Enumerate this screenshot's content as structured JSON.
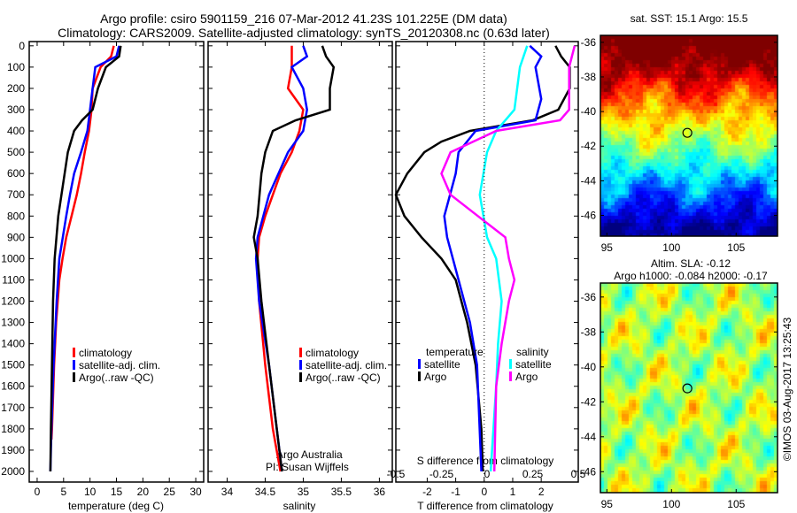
{
  "title_line1": "Argo profile: csiro 5901159_216 07-Mar-2012 41.23S 101.225E (DM data)",
  "title_line2": "Climatology: CARS2009. Satellite-adjusted climatology: synTS_20120308.nc (0.63d later)",
  "colors": {
    "climatology": "#ff0000",
    "satellite": "#0000ff",
    "argo": "#000000",
    "s_satellite": "#00ffff",
    "s_argo": "#ff00ff"
  },
  "chart_data": [
    {
      "type": "line",
      "xlabel": "temperature (deg C)",
      "ylabel": "",
      "xlim": [
        -1.5,
        31.5
      ],
      "ylim": [
        2050,
        -20
      ],
      "xticks": [
        0,
        5,
        10,
        15,
        20,
        25,
        30
      ],
      "yticks": [
        0,
        100,
        200,
        300,
        400,
        500,
        600,
        700,
        800,
        900,
        1000,
        1100,
        1200,
        1300,
        1400,
        1500,
        1600,
        1700,
        1800,
        1900,
        2000
      ],
      "legend": [
        "climatology",
        "satellite-adj. clim.",
        "Argo(..raw -QC)"
      ],
      "series": [
        {
          "name": "climatology",
          "color": "#ff0000",
          "depth": [
            0,
            50,
            100,
            200,
            300,
            400,
            500,
            600,
            700,
            800,
            900,
            1000,
            1100,
            1200,
            1300,
            1500,
            1800,
            1850
          ],
          "values": [
            14.5,
            14,
            12,
            10.5,
            10.3,
            9.8,
            9,
            8.3,
            7.5,
            6.5,
            5.5,
            4.8,
            4.2,
            3.9,
            3.6,
            3.2,
            2.8,
            2.7
          ]
        },
        {
          "name": "satellite-adj. clim.",
          "color": "#0000ff",
          "depth": [
            0,
            50,
            100,
            200,
            300,
            400,
            500,
            600,
            700,
            800,
            1000,
            1200,
            1500,
            1800,
            2000
          ],
          "values": [
            15.5,
            15,
            11,
            10.5,
            10,
            9.5,
            8.3,
            7,
            6.2,
            5.5,
            4.2,
            3.7,
            3.1,
            2.7,
            2.5
          ]
        },
        {
          "name": "Argo(..raw -QC)",
          "color": "#000000",
          "depth": [
            0,
            50,
            100,
            200,
            300,
            350,
            400,
            500,
            600,
            800,
            1000,
            1200,
            1500,
            1800,
            2000
          ],
          "values": [
            15.8,
            15.5,
            13,
            11.5,
            10.5,
            8.5,
            7,
            5.8,
            5.2,
            4,
            3.3,
            3,
            2.8,
            2.6,
            2.5
          ]
        }
      ]
    },
    {
      "type": "line",
      "xlabel": "salinity",
      "xlim": [
        33.75,
        36.17
      ],
      "ylim": [
        2050,
        -20
      ],
      "xticks": [
        34,
        34.5,
        35,
        35.5,
        36
      ],
      "legend": [
        "climatology",
        "satellite-adj. clim.",
        "Argo(..raw -QC)"
      ],
      "annotation": [
        "Argo Australia",
        "PI: Susan Wijffels"
      ],
      "series": [
        {
          "name": "climatology",
          "color": "#ff0000",
          "depth": [
            0,
            100,
            200,
            300,
            400,
            500,
            600,
            700,
            800,
            900,
            1000,
            1200,
            1500,
            1800,
            2000
          ],
          "values": [
            34.85,
            34.85,
            34.8,
            35.0,
            34.95,
            34.85,
            34.7,
            34.6,
            34.5,
            34.42,
            34.4,
            34.42,
            34.5,
            34.6,
            34.7
          ]
        },
        {
          "name": "satellite-adj. clim.",
          "color": "#0000ff",
          "depth": [
            0,
            50,
            100,
            200,
            300,
            400,
            500,
            700,
            900,
            1000,
            1200,
            1500,
            2000
          ],
          "values": [
            35.0,
            35.05,
            34.85,
            35.0,
            35.05,
            35.0,
            34.8,
            34.55,
            34.4,
            34.38,
            34.42,
            34.55,
            34.72
          ]
        },
        {
          "name": "Argo(..raw -QC)",
          "color": "#000000",
          "depth": [
            0,
            50,
            100,
            200,
            300,
            350,
            400,
            500,
            600,
            800,
            900,
            1000,
            1200,
            1500,
            2000
          ],
          "values": [
            35.25,
            35.3,
            35.4,
            35.35,
            35.35,
            34.9,
            34.6,
            34.5,
            34.45,
            34.4,
            34.35,
            34.4,
            34.45,
            34.55,
            34.72
          ]
        }
      ]
    },
    {
      "type": "line",
      "xlabel": "T difference from climatology",
      "x2label": "S difference from climatology",
      "xlim": [
        -3.1,
        3.3
      ],
      "x2lim": [
        -0.5,
        0.5
      ],
      "ylim": [
        2050,
        -20
      ],
      "xticks": [
        -2,
        -1,
        0,
        1,
        2
      ],
      "x2ticks": [
        "-0.5",
        "-0.25",
        "0",
        "0.25",
        "0.5"
      ],
      "legend_temperature": {
        "title": "temperature",
        "items": [
          "satellite",
          "Argo"
        ]
      },
      "legend_salinity": {
        "title": "salinity",
        "items": [
          "satellite",
          "Argo"
        ]
      },
      "series": [
        {
          "name": "T Argo",
          "color": "#000000",
          "axis": "T",
          "depth": [
            0,
            50,
            100,
            200,
            300,
            350,
            400,
            450,
            500,
            600,
            700,
            800,
            900,
            1000,
            1100,
            1200,
            1300,
            1500,
            1800,
            2000
          ],
          "values": [
            2.5,
            2.7,
            3,
            3,
            2.6,
            1.7,
            -0.5,
            -1.5,
            -2.1,
            -2.7,
            -3.1,
            -2.8,
            -2.2,
            -1.5,
            -1,
            -0.8,
            -0.6,
            -0.3,
            -0.1,
            -0.05
          ]
        },
        {
          "name": "T satellite",
          "color": "#0000ff",
          "axis": "T",
          "depth": [
            0,
            50,
            100,
            250,
            350,
            400,
            500,
            600,
            700,
            800,
            900,
            1000,
            1100,
            1300,
            1500,
            2000
          ],
          "values": [
            1.6,
            2.0,
            1.8,
            2.0,
            1.8,
            -0.3,
            -0.9,
            -1,
            -1.2,
            -1.4,
            -1.3,
            -1.1,
            -0.9,
            -0.5,
            -0.25,
            -0.1
          ]
        },
        {
          "name": "S satellite",
          "color": "#00ffff",
          "axis": "S",
          "depth": [
            0,
            50,
            100,
            300,
            400,
            500,
            700,
            900,
            1000,
            1200,
            1400,
            1600,
            2000
          ],
          "values": [
            0.22,
            0.2,
            0.18,
            0.15,
            0.05,
            0.0,
            -0.04,
            0.0,
            0.05,
            0.08,
            0.06,
            0.05,
            0.02
          ]
        },
        {
          "name": "S Argo",
          "color": "#ff00ff",
          "axis": "S",
          "depth": [
            0,
            100,
            200,
            300,
            350,
            400,
            500,
            600,
            700,
            800,
            900,
            1000,
            1100,
            1200,
            1400,
            1600,
            2000
          ],
          "values": [
            0.48,
            0.45,
            0.45,
            0.45,
            0.4,
            0.05,
            -0.2,
            -0.25,
            -0.2,
            -0.05,
            0.1,
            0.12,
            0.15,
            0.12,
            0.08,
            0.05,
            0.04
          ]
        }
      ]
    },
    {
      "type": "heatmap",
      "title": "sat. SST: 15.1 Argo: 15.5",
      "xlim": [
        94.5,
        108.2
      ],
      "ylim": [
        -47.2,
        -35.6
      ],
      "xticks": [
        95,
        100,
        105
      ],
      "yticks": [
        -36,
        -38,
        -40,
        -42,
        -44,
        -46
      ],
      "marker": {
        "lon": 101.225,
        "lat": -41.23
      }
    },
    {
      "type": "heatmap",
      "title": "Altim. SLA: -0.12",
      "subtitle": "Argo h1000: -0.084 h2000: -0.17",
      "xlim": [
        94.5,
        108.2
      ],
      "ylim": [
        -47.2,
        -35.2
      ],
      "xticks": [
        95,
        100,
        105
      ],
      "yticks": [
        -36,
        -38,
        -40,
        -42,
        -44,
        -46
      ],
      "marker": {
        "lon": 101.225,
        "lat": -41.23
      }
    }
  ],
  "credit": "©IMOS 03-Aug-2017 13:25:43"
}
